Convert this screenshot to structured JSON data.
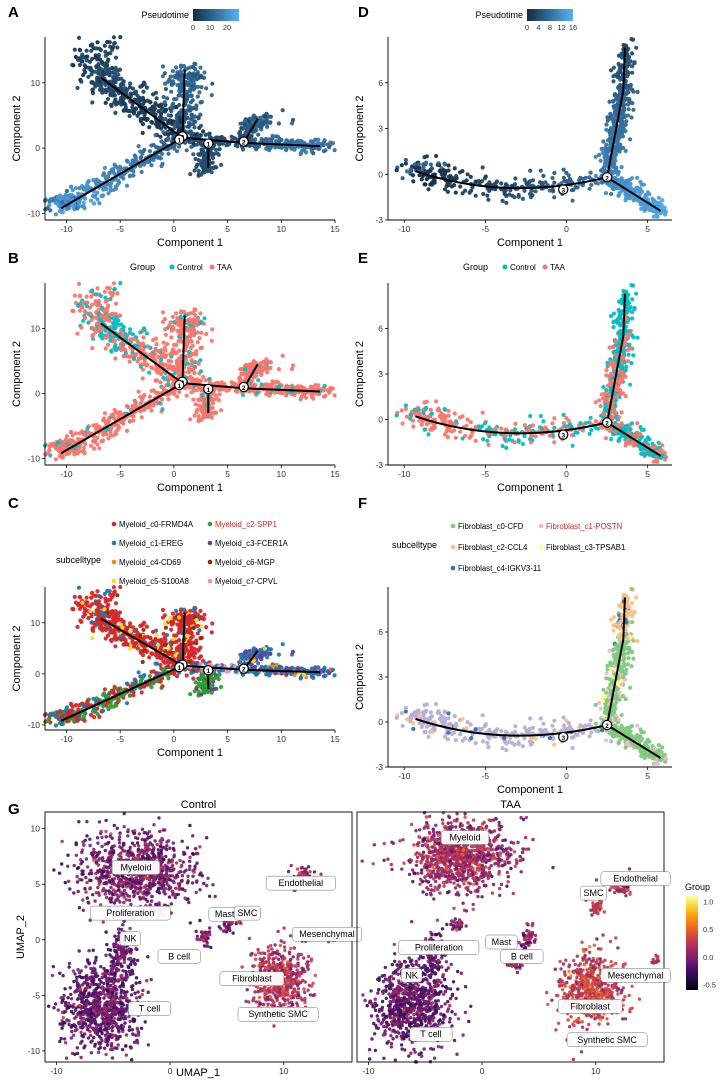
{
  "figure": {
    "width": 728,
    "height": 1080
  },
  "colors": {
    "pseudotime_dark": "#132b43",
    "pseudotime_light": "#56b1f7",
    "control": "#00bfc4",
    "taa": "#f8766d",
    "trajectory": "#000000",
    "highlight_label": "#d62728"
  },
  "chart_data": [
    {
      "panel": "A",
      "type": "scatter",
      "data_set": "myeloid",
      "color_by": "pseudotime",
      "title": "",
      "xlabel": "Component 1",
      "ylabel": "Component 2",
      "xlim": [
        -12,
        15
      ],
      "ylim": [
        -11,
        17
      ],
      "xticks": [
        -10,
        -5,
        0,
        5,
        10,
        15
      ],
      "yticks": [
        -10,
        0,
        10
      ],
      "legend": {
        "title": "Pseudotime",
        "type": "gradient",
        "ticks": [
          "0",
          "10",
          "20"
        ],
        "range": [
          0,
          27
        ],
        "position": "top"
      }
    },
    {
      "panel": "B",
      "type": "scatter",
      "data_set": "myeloid",
      "color_by": "group",
      "title": "",
      "xlabel": "Component 1",
      "ylabel": "Component 2",
      "xlim": [
        -12,
        15
      ],
      "ylim": [
        -11,
        17
      ],
      "xticks": [
        -10,
        -5,
        0,
        5,
        10,
        15
      ],
      "yticks": [
        -10,
        0,
        10
      ],
      "legend": {
        "title": "Group",
        "entries": [
          "Control",
          "TAA"
        ],
        "position": "top"
      }
    },
    {
      "panel": "C",
      "type": "scatter",
      "data_set": "myeloid",
      "color_by": "subcelltype",
      "title": "",
      "xlabel": "Component 1",
      "ylabel": "Component 2",
      "xlim": [
        -12,
        15
      ],
      "ylim": [
        -11,
        17
      ],
      "xticks": [
        -10,
        -5,
        0,
        5,
        10,
        15
      ],
      "yticks": [
        -10,
        0,
        10
      ],
      "legend": {
        "title": "subcelltype",
        "position": "top",
        "entries": [
          {
            "label": "Myeloid_c0-FRMD4A",
            "color": "#d62728"
          },
          {
            "label": "Myeloid_c2-SPP1",
            "color": "#2ca02c",
            "highlight": true
          },
          {
            "label": "Myeloid_c1-EREG",
            "color": "#1f77b4"
          },
          {
            "label": "Myeloid_c3-FCER1A",
            "color": "#6a3d9a"
          },
          {
            "label": "Myeloid_c4-CD69",
            "color": "#ff7f0e"
          },
          {
            "label": "Myeloid_c6-MGP",
            "color": "#8c2d04"
          },
          {
            "label": "Myeloid_c5-S100A8",
            "color": "#ffd92f"
          },
          {
            "label": "Myeloid_c7-CPVL",
            "color": "#f48fb1"
          }
        ]
      }
    },
    {
      "panel": "D",
      "type": "scatter",
      "data_set": "fibroblast",
      "color_by": "pseudotime",
      "title": "",
      "xlabel": "Component 1",
      "ylabel": "Component 2",
      "xlim": [
        -11,
        6.5
      ],
      "ylim": [
        -3,
        9
      ],
      "xticks": [
        -10,
        -5,
        0,
        5
      ],
      "yticks": [
        -3,
        0,
        3,
        6
      ],
      "legend": {
        "title": "Pseudotime",
        "type": "gradient",
        "ticks": [
          "0",
          "4",
          "8",
          "12",
          "16"
        ],
        "range": [
          0,
          16
        ],
        "position": "top"
      }
    },
    {
      "panel": "E",
      "type": "scatter",
      "data_set": "fibroblast",
      "color_by": "group",
      "title": "",
      "xlabel": "Component 1",
      "ylabel": "Component 2",
      "xlim": [
        -11,
        6.5
      ],
      "ylim": [
        -3,
        9
      ],
      "xticks": [
        -10,
        -5,
        0,
        5
      ],
      "yticks": [
        -3,
        0,
        3,
        6
      ],
      "legend": {
        "title": "Group",
        "entries": [
          "Control",
          "TAA"
        ],
        "position": "top"
      }
    },
    {
      "panel": "F",
      "type": "scatter",
      "data_set": "fibroblast",
      "color_by": "subcelltype",
      "title": "",
      "xlabel": "Component 1",
      "ylabel": "Component 2",
      "xlim": [
        -11,
        6.5
      ],
      "ylim": [
        -3,
        9
      ],
      "xticks": [
        -10,
        -5,
        0,
        5
      ],
      "yticks": [
        -3,
        0,
        3,
        6
      ],
      "legend": {
        "title": "subcelltype",
        "position": "top",
        "entries": [
          {
            "label": "Fibroblast_c0-CFD",
            "color": "#7fc97f"
          },
          {
            "label": "Fibroblast_c1-POSTN",
            "color": "#f0b8c8",
            "highlight": true
          },
          {
            "label": "Fibroblast_c2-CCL4",
            "color": "#fdc086"
          },
          {
            "label": "Fibroblast_c3-TPSAB1",
            "color": "#ffff99"
          },
          {
            "label": "Fibroblast_c4-IGKV3-11",
            "color": "#386cb0"
          }
        ]
      }
    },
    {
      "panel": "G",
      "type": "scatter",
      "subtype": "umap_density",
      "facets": [
        "Control",
        "TAA"
      ],
      "xlabel": "UMAP_1",
      "ylabel": "UMAP_2",
      "xlim": [
        -11,
        16
      ],
      "ylim": [
        -11,
        11.5
      ],
      "xticks": [
        -10,
        0,
        10
      ],
      "yticks": [
        -10,
        -5,
        0,
        5,
        10
      ],
      "legend": {
        "title": "Group",
        "type": "gradient",
        "ticks": [
          "1.0",
          "0.5",
          "0.0",
          "-0.5"
        ],
        "range": [
          -0.6,
          1.1
        ],
        "position": "right"
      },
      "cell_labels": [
        {
          "facet": "Control",
          "label": "Myeloid",
          "x": -3,
          "y": 6.5
        },
        {
          "facet": "Control",
          "label": "Endothelial",
          "x": 11.5,
          "y": 5.1
        },
        {
          "facet": "Control",
          "label": "Proliferation",
          "x": -3.5,
          "y": 2.4
        },
        {
          "facet": "Control",
          "label": "Mast",
          "x": 4.8,
          "y": 2.3
        },
        {
          "facet": "Control",
          "label": "SMC",
          "x": 6.8,
          "y": 2.4
        },
        {
          "facet": "Control",
          "label": "NK",
          "x": -3.5,
          "y": 0.1
        },
        {
          "facet": "Control",
          "label": "Mesenchymal",
          "x": 13.8,
          "y": 0.5
        },
        {
          "facet": "Control",
          "label": "B cell",
          "x": 0.8,
          "y": -1.5
        },
        {
          "facet": "Control",
          "label": "Fibroblast",
          "x": 7.2,
          "y": -3.5
        },
        {
          "facet": "Control",
          "label": "T cell",
          "x": -1.8,
          "y": -6.2
        },
        {
          "facet": "Control",
          "label": "Synthetic SMC",
          "x": 9.5,
          "y": -6.7
        },
        {
          "facet": "TAA",
          "label": "Myeloid",
          "x": -1.5,
          "y": 9.2
        },
        {
          "facet": "TAA",
          "label": "Endothelial",
          "x": 13.5,
          "y": 5.5
        },
        {
          "facet": "TAA",
          "label": "SMC",
          "x": 9.8,
          "y": 4.2
        },
        {
          "facet": "TAA",
          "label": "Proliferation",
          "x": -3.8,
          "y": -0.7
        },
        {
          "facet": "TAA",
          "label": "Mast",
          "x": 1.7,
          "y": -0.2
        },
        {
          "facet": "TAA",
          "label": "B cell",
          "x": 3.5,
          "y": -1.5
        },
        {
          "facet": "TAA",
          "label": "Mesenchymal",
          "x": 13.5,
          "y": -3.2
        },
        {
          "facet": "TAA",
          "label": "NK",
          "x": -6.2,
          "y": -3.2
        },
        {
          "facet": "TAA",
          "label": "Fibroblast",
          "x": 9.5,
          "y": -6.0
        },
        {
          "facet": "TAA",
          "label": "T cell",
          "x": -4.5,
          "y": -8.5
        },
        {
          "facet": "TAA",
          "label": "Synthetic SMC",
          "x": 11.0,
          "y": -9.0
        }
      ]
    }
  ]
}
